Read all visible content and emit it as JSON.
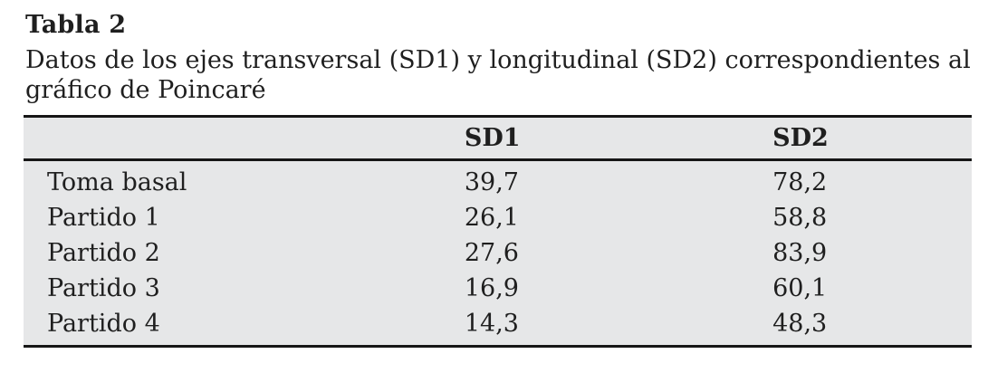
{
  "table_block": {
    "title": "Tabla 2",
    "caption_line1": "Datos de los ejes transversal (SD1) y longitudinal (SD2) correspondientes al",
    "caption_line2": "gráfico de Poincaré",
    "colors": {
      "table_background": "#e6e7e8",
      "rule": "#161616",
      "text": "#1f1f1f"
    }
  },
  "chart_data": {
    "type": "table",
    "title": "Tabla 2",
    "caption": "Datos de los ejes transversal (SD1) y longitudinal (SD2) correspondientes al gráfico de Poincaré",
    "columns": [
      "",
      "SD1",
      "SD2"
    ],
    "rows": [
      {
        "label": "Toma basal",
        "sd1": "39,7",
        "sd2": "78,2"
      },
      {
        "label": "Partido 1",
        "sd1": "26,1",
        "sd2": "58,8"
      },
      {
        "label": "Partido 2",
        "sd1": "27,6",
        "sd2": "83,9"
      },
      {
        "label": "Partido 3",
        "sd1": "16,9",
        "sd2": "60,1"
      },
      {
        "label": "Partido 4",
        "sd1": "14,3",
        "sd2": "48,3"
      }
    ]
  }
}
